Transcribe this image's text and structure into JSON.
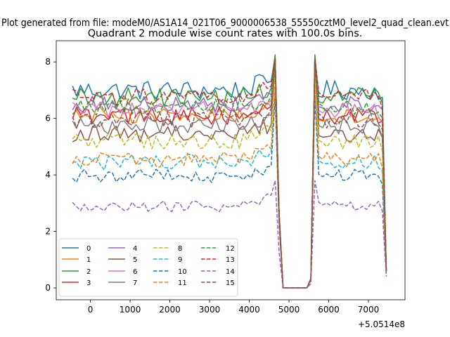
{
  "figure": {
    "suptitle": "Plot generated from file: modeM0/AS1A14_021T06_9000006538_55550cztM0_level2_quad_clean.evt",
    "offset_label": "+5.0514e8"
  },
  "chart_data": {
    "type": "line",
    "title": "Quadrant 2 module wise count rates with 100.0s bins.",
    "xlabel": "",
    "ylabel": "",
    "xlim": [
      -860,
      7920
    ],
    "ylim": [
      -0.42,
      8.75
    ],
    "x_offset": 505140000,
    "xticks": [
      0,
      1000,
      2000,
      3000,
      4000,
      5000,
      6000,
      7000
    ],
    "xtick_labels": [
      "0",
      "1000",
      "2000",
      "3000",
      "4000",
      "5000",
      "6000",
      "7000"
    ],
    "yticks": [
      0,
      2,
      4,
      6,
      8
    ],
    "ytick_labels": [
      "0",
      "2",
      "4",
      "6",
      "8"
    ],
    "grid": false,
    "legend": {
      "placement": "lower-left",
      "ncol": 4
    },
    "x_start": -450,
    "x_step": 100,
    "n_points": 80,
    "gap_start": 4800,
    "gap_end": 5500,
    "series": [
      {
        "name": "0",
        "color": "#1f77b4",
        "dashed": false,
        "level": 7.0,
        "noise": 0.35,
        "peak": 8.2,
        "end": 0.6
      },
      {
        "name": "1",
        "color": "#ff7f0e",
        "dashed": false,
        "level": 6.1,
        "noise": 0.3,
        "peak": 8.1,
        "end": 0.7
      },
      {
        "name": "2",
        "color": "#2ca02c",
        "dashed": false,
        "level": 6.75,
        "noise": 0.35,
        "peak": 8.25,
        "end": 0.6
      },
      {
        "name": "3",
        "color": "#d62728",
        "dashed": false,
        "level": 6.1,
        "noise": 0.32,
        "peak": 8.1,
        "end": 0.7
      },
      {
        "name": "4",
        "color": "#9467bd",
        "dashed": false,
        "level": 6.5,
        "noise": 0.3,
        "peak": 8.0,
        "end": 0.6
      },
      {
        "name": "5",
        "color": "#8c564b",
        "dashed": false,
        "level": 5.45,
        "noise": 0.3,
        "peak": 7.9,
        "end": 0.6
      },
      {
        "name": "6",
        "color": "#e377c2",
        "dashed": false,
        "level": 6.3,
        "noise": 0.32,
        "peak": 8.0,
        "end": 0.6
      },
      {
        "name": "7",
        "color": "#7f7f7f",
        "dashed": false,
        "level": 5.75,
        "noise": 0.3,
        "peak": 7.9,
        "end": 0.6
      },
      {
        "name": "8",
        "color": "#bcbd22",
        "dashed": true,
        "level": 5.2,
        "noise": 0.28,
        "peak": 7.6,
        "end": 0.6
      },
      {
        "name": "9",
        "color": "#17becf",
        "dashed": true,
        "level": 4.45,
        "noise": 0.28,
        "peak": 7.0,
        "end": 0.5
      },
      {
        "name": "10",
        "color": "#1f77b4",
        "dashed": true,
        "level": 3.95,
        "noise": 0.25,
        "peak": 6.8,
        "end": 0.5
      },
      {
        "name": "11",
        "color": "#ff7f0e",
        "dashed": true,
        "level": 4.55,
        "noise": 0.28,
        "peak": 7.1,
        "end": 0.5
      },
      {
        "name": "12",
        "color": "#2ca02c",
        "dashed": true,
        "level": 6.4,
        "noise": 0.3,
        "peak": 8.1,
        "end": 0.6
      },
      {
        "name": "13",
        "color": "#d62728",
        "dashed": true,
        "level": 6.75,
        "noise": 0.3,
        "peak": 8.1,
        "end": 0.6
      },
      {
        "name": "14",
        "color": "#9467bd",
        "dashed": true,
        "level": 2.9,
        "noise": 0.2,
        "peak": 3.8,
        "end": 0.4
      },
      {
        "name": "15",
        "color": "#8c564b",
        "dashed": true,
        "level": 5.95,
        "noise": 0.3,
        "peak": 7.9,
        "end": 0.6
      }
    ]
  }
}
